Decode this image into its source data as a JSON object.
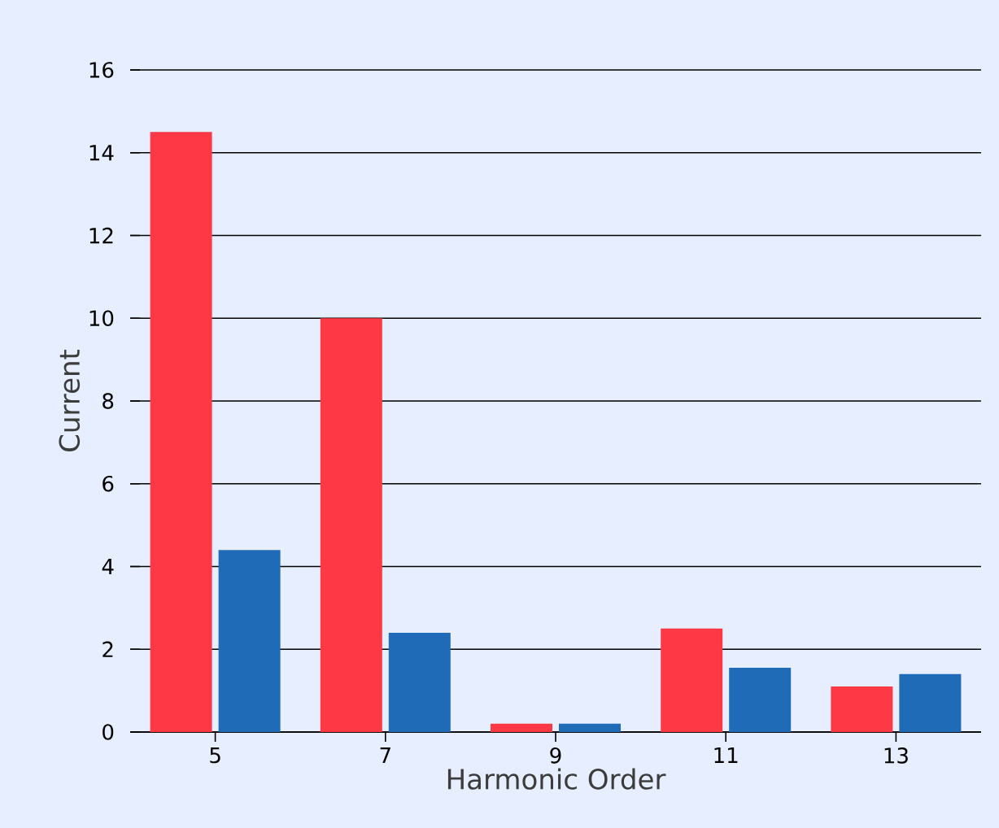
{
  "chart_data": {
    "type": "bar",
    "xlabel": "Harmonic Order",
    "ylabel": "Current",
    "categories": [
      "5",
      "7",
      "9",
      "11",
      "13"
    ],
    "series": [
      {
        "color": "#ff3845",
        "values": [
          14.5,
          10.0,
          0.2,
          2.5,
          1.1
        ]
      },
      {
        "color": "#1f6bb8",
        "values": [
          4.4,
          2.4,
          0.2,
          1.55,
          1.4
        ]
      }
    ],
    "ylim": [
      0,
      16
    ],
    "yticks": [
      0,
      2,
      4,
      6,
      8,
      10,
      12,
      14,
      16
    ],
    "grid": "y"
  }
}
